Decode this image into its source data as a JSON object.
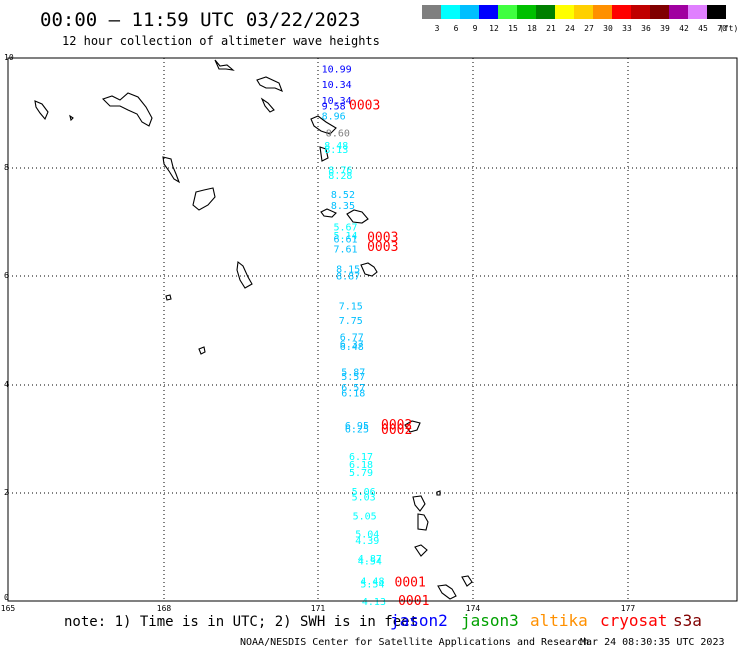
{
  "header": {
    "title": "00:00 – 11:59 UTC 03/22/2023",
    "subtitle": "12 hour collection of altimeter wave heights"
  },
  "legend": {
    "unit_label": "(ft)",
    "bins": [
      {
        "label": "3",
        "color": "#7f7f7f"
      },
      {
        "label": "6",
        "color": "#00ffff"
      },
      {
        "label": "9",
        "color": "#00bfff"
      },
      {
        "label": "12",
        "color": "#0000ff"
      },
      {
        "label": "15",
        "color": "#40ff40"
      },
      {
        "label": "18",
        "color": "#00c000"
      },
      {
        "label": "21",
        "color": "#008000"
      },
      {
        "label": "24",
        "color": "#ffff00"
      },
      {
        "label": "27",
        "color": "#ffd000"
      },
      {
        "label": "30",
        "color": "#ff9000"
      },
      {
        "label": "33",
        "color": "#ff0000"
      },
      {
        "label": "36",
        "color": "#c00000"
      },
      {
        "label": "39",
        "color": "#800000"
      },
      {
        "label": "42",
        "color": "#a000a0"
      },
      {
        "label": "45",
        "color": "#e080ff"
      },
      {
        "label": "70",
        "color": "#000000"
      }
    ]
  },
  "axes": {
    "y_labels": [
      "10",
      "8",
      "6",
      "4",
      "2",
      "0"
    ],
    "x_labels": [
      "165",
      "168",
      "171",
      "174",
      "177"
    ]
  },
  "observations": [
    {
      "text": "10.99",
      "color": "#0000ff",
      "lon": 171.07,
      "lat": 9.73
    },
    {
      "text": "10.34",
      "color": "#0000ff",
      "lon": 171.07,
      "lat": 9.45
    },
    {
      "text": "10.34",
      "color": "#0000ff",
      "lon": 171.07,
      "lat": 9.15
    },
    {
      "text": "9.58",
      "color": "#0000ff",
      "lon": 171.07,
      "lat": 9.05
    },
    {
      "text": "8.96",
      "color": "#00bfff",
      "lon": 171.07,
      "lat": 8.87
    },
    {
      "text": "8.60",
      "color": "#7f7f7f",
      "lon": 171.15,
      "lat": 8.55
    },
    {
      "text": "8.48",
      "color": "#00ffff",
      "lon": 171.12,
      "lat": 8.32
    },
    {
      "text": "8.13",
      "color": "#00ffff",
      "lon": 171.12,
      "lat": 8.25
    },
    {
      "text": "8.76",
      "color": "#00ffff",
      "lon": 171.2,
      "lat": 7.87
    },
    {
      "text": "8.28",
      "color": "#00ffff",
      "lon": 171.2,
      "lat": 7.77
    },
    {
      "text": "8.52",
      "color": "#00bfff",
      "lon": 171.25,
      "lat": 7.42
    },
    {
      "text": "8.35",
      "color": "#00bfff",
      "lon": 171.25,
      "lat": 7.22
    },
    {
      "text": "5.67",
      "color": "#00ffff",
      "lon": 171.3,
      "lat": 6.82
    },
    {
      "text": "5.14",
      "color": "#00ffff",
      "lon": 171.3,
      "lat": 6.67
    },
    {
      "text": "6.61",
      "color": "#00bfff",
      "lon": 171.3,
      "lat": 6.6
    },
    {
      "text": "7.61",
      "color": "#00bfff",
      "lon": 171.3,
      "lat": 6.42
    },
    {
      "text": "8.15",
      "color": "#00bfff",
      "lon": 171.35,
      "lat": 6.05
    },
    {
      "text": "8.87",
      "color": "#00bfff",
      "lon": 171.35,
      "lat": 5.92
    },
    {
      "text": "7.15",
      "color": "#00bfff",
      "lon": 171.4,
      "lat": 5.37
    },
    {
      "text": "7.75",
      "color": "#00bfff",
      "lon": 171.4,
      "lat": 5.1
    },
    {
      "text": "6.77",
      "color": "#00bfff",
      "lon": 171.42,
      "lat": 4.8
    },
    {
      "text": "6.37",
      "color": "#00bfff",
      "lon": 171.42,
      "lat": 4.67
    },
    {
      "text": "6.48",
      "color": "#00bfff",
      "lon": 171.42,
      "lat": 4.62
    },
    {
      "text": "5.87",
      "color": "#00bfff",
      "lon": 171.45,
      "lat": 4.15
    },
    {
      "text": "5.57",
      "color": "#00bfff",
      "lon": 171.45,
      "lat": 4.07
    },
    {
      "text": "6.57",
      "color": "#00bfff",
      "lon": 171.45,
      "lat": 3.87
    },
    {
      "text": "6.18",
      "color": "#00bfff",
      "lon": 171.45,
      "lat": 3.77
    },
    {
      "text": "6.95",
      "color": "#00bfff",
      "lon": 171.52,
      "lat": 3.17
    },
    {
      "text": "6.25",
      "color": "#00bfff",
      "lon": 171.52,
      "lat": 3.1
    },
    {
      "text": "6.17",
      "color": "#00ffff",
      "lon": 171.6,
      "lat": 2.6
    },
    {
      "text": "6.18",
      "color": "#00ffff",
      "lon": 171.6,
      "lat": 2.45
    },
    {
      "text": "5.79",
      "color": "#00ffff",
      "lon": 171.6,
      "lat": 2.3
    },
    {
      "text": "5.06",
      "color": "#00ffff",
      "lon": 171.65,
      "lat": 1.95
    },
    {
      "text": "5.03",
      "color": "#00ffff",
      "lon": 171.65,
      "lat": 1.85
    },
    {
      "text": "5.05",
      "color": "#00ffff",
      "lon": 171.67,
      "lat": 1.5
    },
    {
      "text": "5.04",
      "color": "#00ffff",
      "lon": 171.72,
      "lat": 1.17
    },
    {
      "text": "4.39",
      "color": "#00ffff",
      "lon": 171.72,
      "lat": 1.05
    },
    {
      "text": "4.87",
      "color": "#00ffff",
      "lon": 171.77,
      "lat": 0.72
    },
    {
      "text": "4.54",
      "color": "#00ffff",
      "lon": 171.77,
      "lat": 0.67
    },
    {
      "text": "4.48",
      "color": "#00ffff",
      "lon": 171.82,
      "lat": 0.3
    },
    {
      "text": "5.54",
      "color": "#00ffff",
      "lon": 171.82,
      "lat": 0.25
    },
    {
      "text": "4.13",
      "color": "#00ffff",
      "lon": 171.85,
      "lat": -0.07
    }
  ],
  "time_labels": [
    {
      "text": "0003",
      "color": "#ff0000",
      "lon": 171.6,
      "lat": 9.05
    },
    {
      "text": "0003",
      "color": "#ff0000",
      "lon": 171.95,
      "lat": 6.62
    },
    {
      "text": "0003",
      "color": "#ff0000",
      "lon": 171.95,
      "lat": 6.45
    },
    {
      "text": "0002",
      "color": "#ff0000",
      "lon": 172.22,
      "lat": 3.17
    },
    {
      "text": "0002",
      "color": "#ff0000",
      "lon": 172.22,
      "lat": 3.08
    },
    {
      "text": "0001",
      "color": "#ff0000",
      "lon": 172.48,
      "lat": 0.27
    },
    {
      "text": "0001",
      "color": "#ff0000",
      "lon": 172.55,
      "lat": -0.07
    }
  ],
  "footer": {
    "note": "note: 1) Time is in UTC; 2) SWH is in feet",
    "satellites": [
      {
        "name": "jason2",
        "color": "#0000ff"
      },
      {
        "name": "jason3",
        "color": "#00a000"
      },
      {
        "name": "altika",
        "color": "#ff9000"
      },
      {
        "name": "cryosat",
        "color": "#ff0000"
      },
      {
        "name": "s3a",
        "color": "#800000"
      }
    ],
    "credit": "NOAA/NESDIS Center for Satellite Applications and Research",
    "timestamp": "Mar 24 08:30:35 UTC 2023"
  }
}
